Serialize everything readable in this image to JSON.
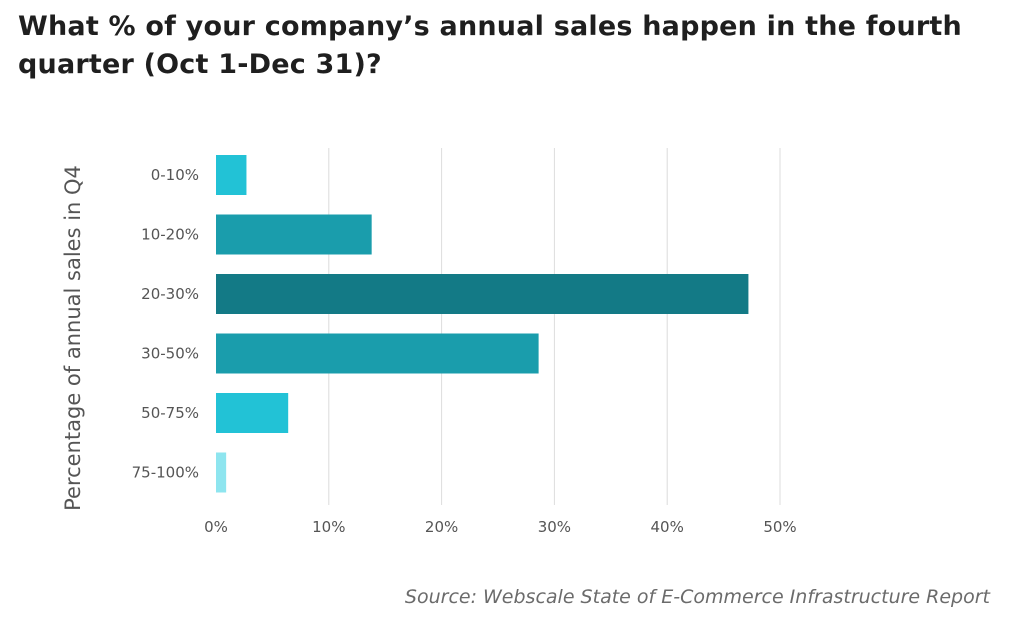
{
  "title": "What % of your company’s annual sales happen in the fourth quarter (Oct 1-Dec 31)?",
  "source": "Source: Webscale State of E-Commerce Infrastructure Report",
  "chart_data": {
    "type": "bar",
    "orientation": "horizontal",
    "title": "What % of your company’s annual sales happen in the fourth quarter (Oct 1-Dec 31)?",
    "xlabel": "",
    "ylabel": "Percentage of annual sales in Q4",
    "categories": [
      "0-10%",
      "10-20%",
      "20-30%",
      "30-50%",
      "50-75%",
      "75-100%"
    ],
    "values": [
      2.7,
      13.8,
      47.2,
      28.6,
      6.4,
      0.9
    ],
    "value_unit": "%",
    "xlim": [
      0,
      50
    ],
    "xticks": [
      0,
      10,
      20,
      30,
      40,
      50
    ],
    "xtick_labels": [
      "0%",
      "10%",
      "20%",
      "30%",
      "40%",
      "50%"
    ],
    "grid": "vertical",
    "legend": "none",
    "colors": [
      "#22c2d6",
      "#1a9dac",
      "#137a86",
      "#1a9dac",
      "#22c2d6",
      "#8ee5ef"
    ],
    "gridline_color": "#dcdcdc"
  }
}
